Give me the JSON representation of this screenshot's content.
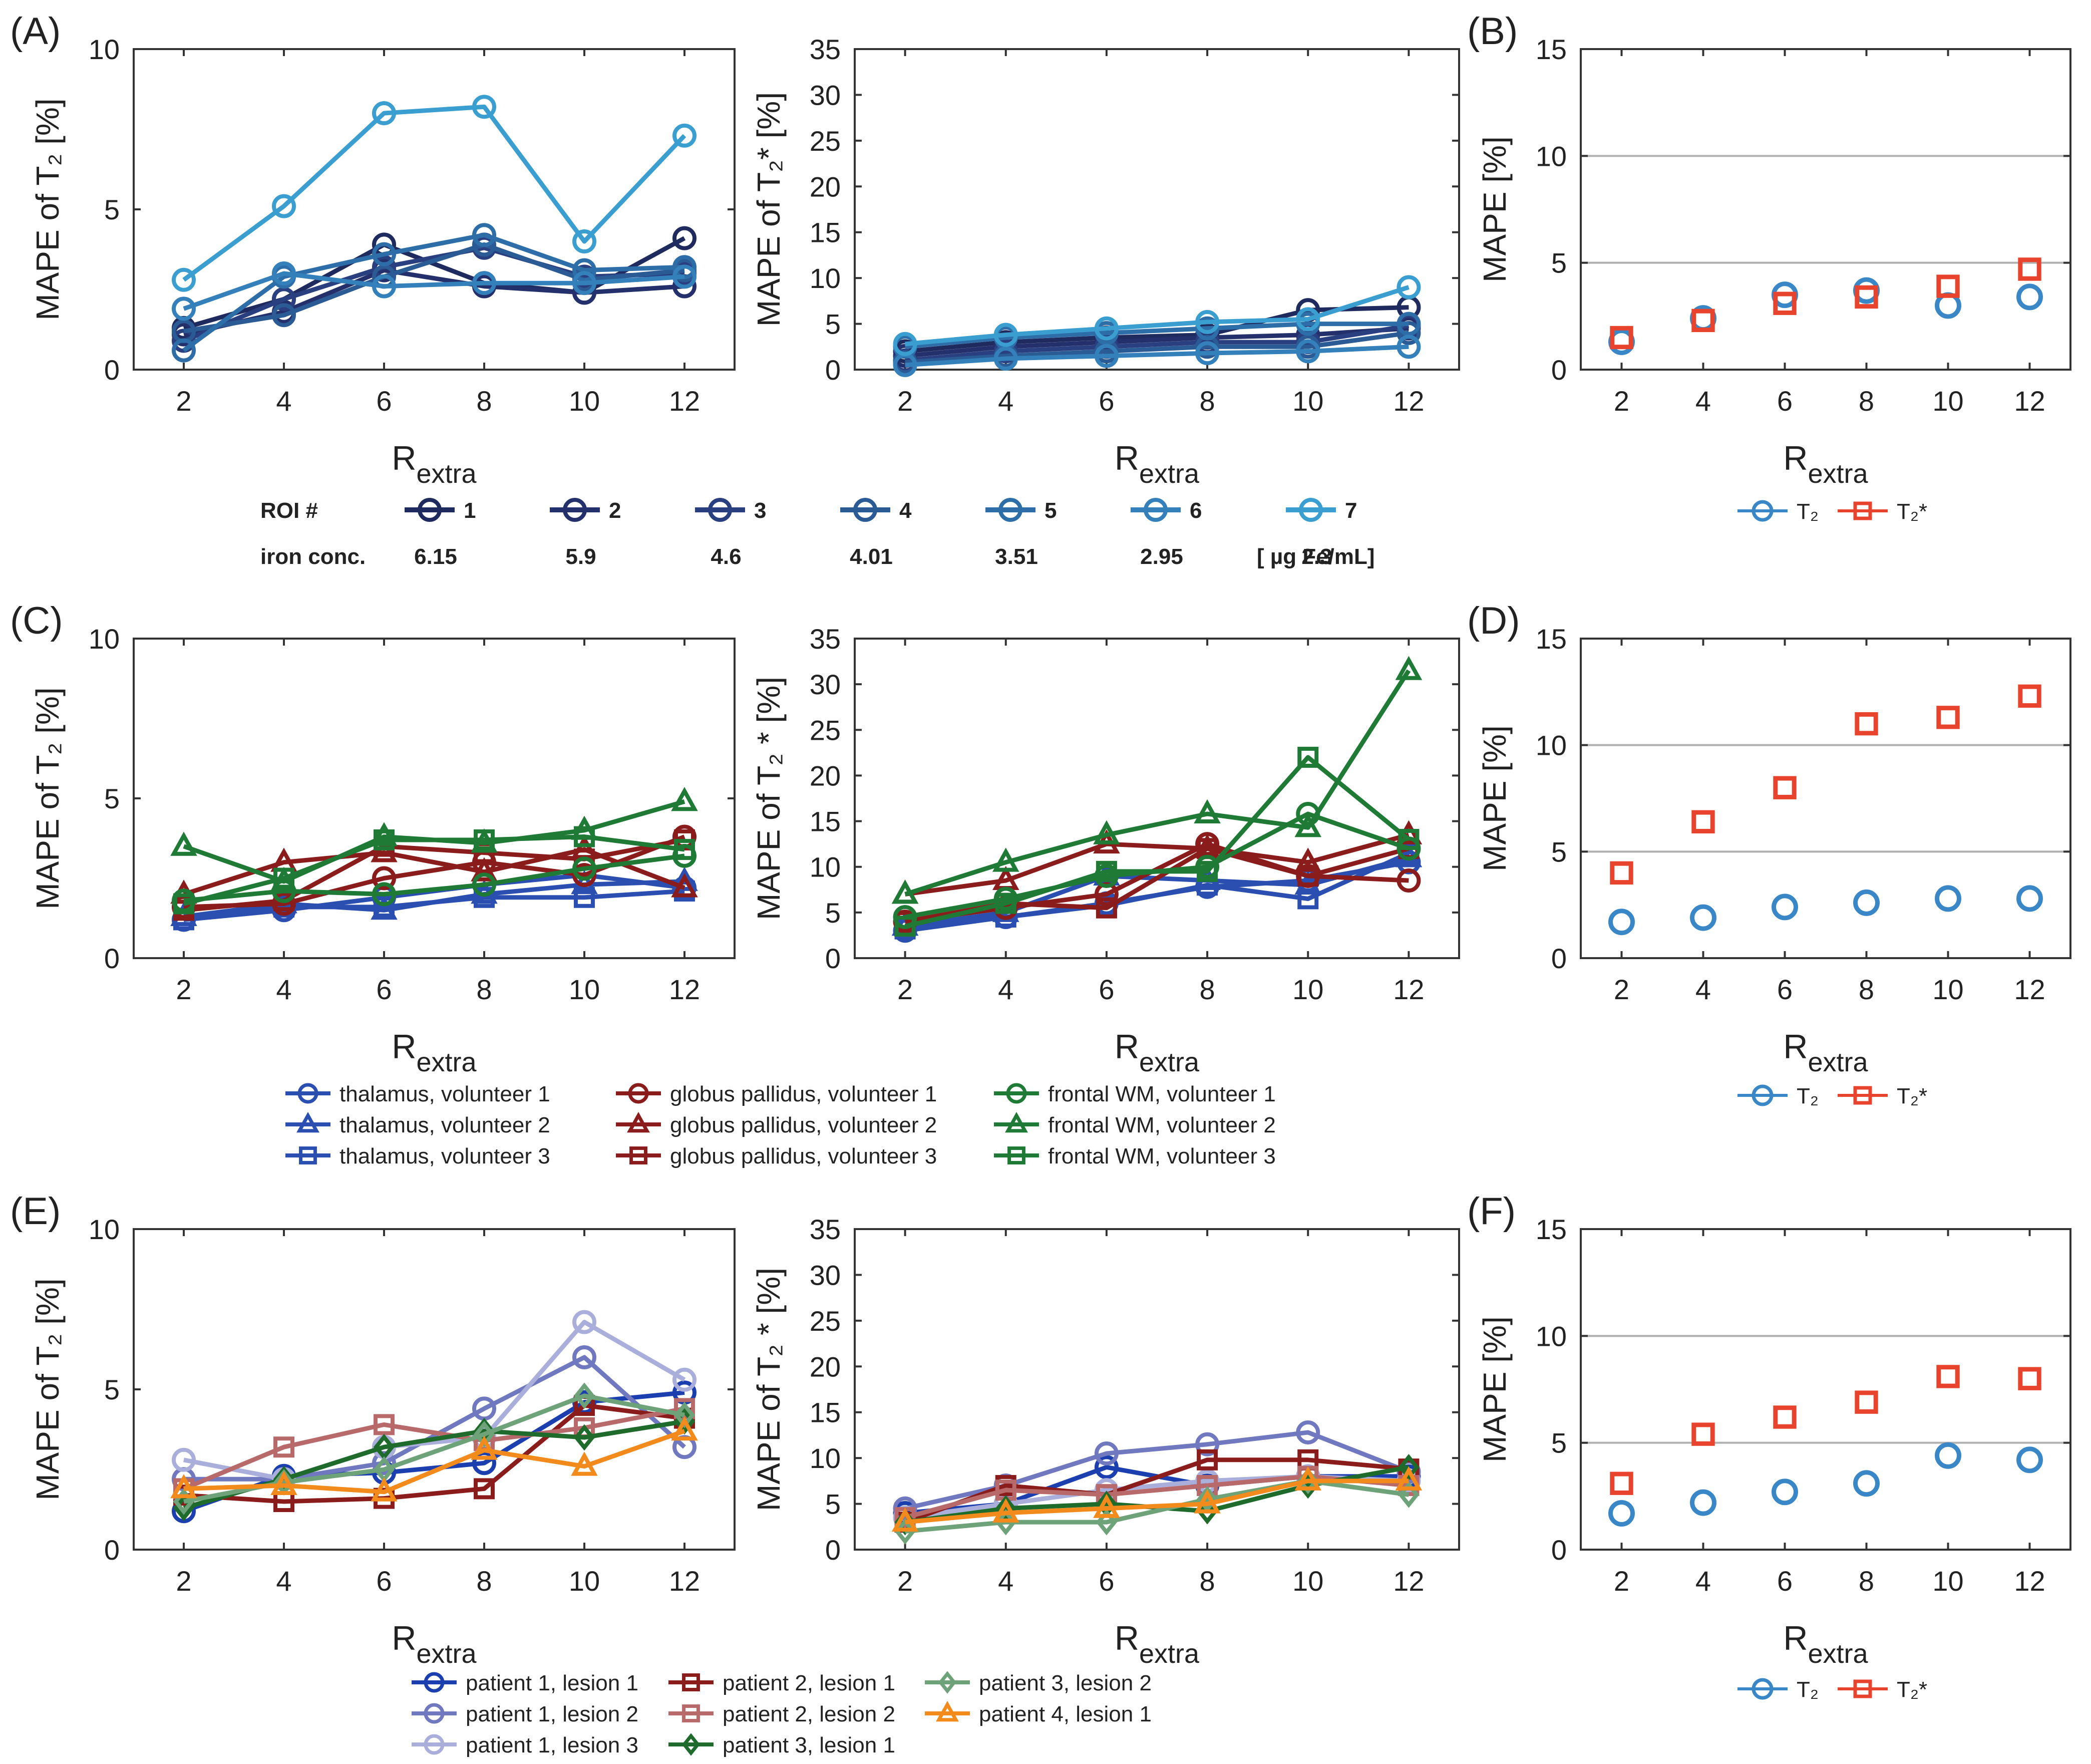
{
  "axis_common": {
    "xlabel_main": "R",
    "xlabel_sub": "extra",
    "x_ticks": [
      2,
      4,
      6,
      8,
      10,
      12
    ]
  },
  "chart_data": [
    {
      "id": "A1",
      "panel_label": "(A)",
      "type": "line",
      "ylabel": "MAPE of T₂ [%]",
      "ylim": [
        0,
        10
      ],
      "yticks": [
        0,
        5,
        10
      ],
      "x": [
        2,
        4,
        6,
        8,
        10,
        12
      ],
      "series": [
        {
          "name": "1",
          "color": "#1f2a5e",
          "marker": "circle",
          "values": [
            1.3,
            2.2,
            3.9,
            2.7,
            2.4,
            4.1
          ]
        },
        {
          "name": "2",
          "color": "#24306b",
          "marker": "circle",
          "values": [
            1.1,
            1.8,
            3.1,
            2.6,
            2.4,
            2.6
          ]
        },
        {
          "name": "3",
          "color": "#2a3f80",
          "marker": "circle",
          "values": [
            0.9,
            2.2,
            3.2,
            3.8,
            2.9,
            3.0
          ]
        },
        {
          "name": "4",
          "color": "#2b5b94",
          "marker": "circle",
          "values": [
            1.2,
            1.7,
            2.9,
            3.9,
            2.8,
            3.1
          ]
        },
        {
          "name": "5",
          "color": "#2e6ea8",
          "marker": "circle",
          "values": [
            0.6,
            2.9,
            3.6,
            4.2,
            3.1,
            3.2
          ]
        },
        {
          "name": "6",
          "color": "#3380bb",
          "marker": "circle",
          "values": [
            1.9,
            3.0,
            2.6,
            2.7,
            2.7,
            2.9
          ]
        },
        {
          "name": "7",
          "color": "#3a9fd0",
          "marker": "circle",
          "values": [
            2.8,
            5.1,
            8.0,
            8.2,
            4.0,
            7.3
          ]
        }
      ]
    },
    {
      "id": "A2",
      "type": "line",
      "ylabel": "MAPE of T₂* [%]",
      "ylim": [
        0,
        35
      ],
      "yticks": [
        0,
        5,
        10,
        15,
        20,
        25,
        30,
        35
      ],
      "x": [
        2,
        4,
        6,
        8,
        10,
        12
      ],
      "series": [
        {
          "name": "1",
          "color": "#1f2a5e",
          "marker": "circle",
          "values": [
            2.0,
            3.0,
            3.5,
            3.8,
            6.5,
            6.8
          ]
        },
        {
          "name": "2",
          "color": "#24306b",
          "marker": "circle",
          "values": [
            1.5,
            2.5,
            3.0,
            3.5,
            3.8,
            4.5
          ]
        },
        {
          "name": "3",
          "color": "#2a3f80",
          "marker": "circle",
          "values": [
            1.0,
            2.0,
            2.5,
            3.0,
            3.0,
            4.8
          ]
        },
        {
          "name": "4",
          "color": "#2b5b94",
          "marker": "circle",
          "values": [
            0.8,
            1.5,
            2.0,
            2.5,
            2.5,
            4.0
          ]
        },
        {
          "name": "5",
          "color": "#2e6ea8",
          "marker": "circle",
          "values": [
            2.5,
            3.5,
            4.0,
            4.5,
            5.0,
            5.0
          ]
        },
        {
          "name": "6",
          "color": "#3380bb",
          "marker": "circle",
          "values": [
            0.5,
            1.2,
            1.5,
            1.8,
            2.0,
            2.5
          ]
        },
        {
          "name": "7",
          "color": "#3a9fd0",
          "marker": "circle",
          "values": [
            2.8,
            3.8,
            4.5,
            5.2,
            5.5,
            9.0
          ]
        }
      ]
    },
    {
      "id": "B",
      "panel_label": "(B)",
      "type": "scatter",
      "ylabel": "MAPE [%]",
      "ylim": [
        0,
        15
      ],
      "yticks": [
        0,
        5,
        10,
        15
      ],
      "hlines": [
        5,
        10
      ],
      "x": [
        2,
        4,
        6,
        8,
        10,
        12
      ],
      "series": [
        {
          "name": "T₂",
          "color": "#3a87c8",
          "marker": "circle",
          "values": [
            1.3,
            2.4,
            3.5,
            3.7,
            3.0,
            3.4
          ]
        },
        {
          "name": "T₂*",
          "color": "#e8432c",
          "marker": "square",
          "values": [
            1.5,
            2.3,
            3.1,
            3.4,
            3.9,
            4.7
          ]
        }
      ]
    },
    {
      "id": "C1",
      "panel_label": "(C)",
      "type": "line",
      "ylabel": "MAPE of T₂  [%]",
      "ylim": [
        0,
        10
      ],
      "yticks": [
        0,
        5,
        10
      ],
      "x": [
        2,
        4,
        6,
        8,
        10,
        12
      ],
      "series": [
        {
          "name": "thalamus, volunteer 1",
          "color": "#2a4fb0",
          "marker": "circle",
          "values": [
            1.2,
            1.5,
            1.9,
            2.3,
            2.6,
            2.2
          ]
        },
        {
          "name": "thalamus, volunteer 2",
          "color": "#2a4fb0",
          "marker": "triangle",
          "values": [
            1.3,
            1.7,
            1.5,
            2.0,
            2.3,
            2.4
          ]
        },
        {
          "name": "thalamus, volunteer 3",
          "color": "#2a4fb0",
          "marker": "square",
          "values": [
            1.2,
            1.6,
            1.6,
            1.9,
            1.9,
            2.1
          ]
        },
        {
          "name": "globus pallidus, volunteer 1",
          "color": "#8b1c1c",
          "marker": "circle",
          "values": [
            1.6,
            1.7,
            2.5,
            3.0,
            2.6,
            3.8
          ]
        },
        {
          "name": "globus pallidus, volunteer 2",
          "color": "#8b1c1c",
          "marker": "triangle",
          "values": [
            2.0,
            3.0,
            3.3,
            2.7,
            3.4,
            2.2
          ]
        },
        {
          "name": "globus pallidus, volunteer 3",
          "color": "#8b1c1c",
          "marker": "square",
          "values": [
            1.5,
            1.8,
            3.5,
            3.3,
            3.1,
            3.7
          ]
        },
        {
          "name": "frontal WM, volunteer 1",
          "color": "#1e7a35",
          "marker": "circle",
          "values": [
            1.8,
            2.1,
            2.0,
            2.3,
            2.8,
            3.2
          ]
        },
        {
          "name": "frontal WM, volunteer 2",
          "color": "#1e7a35",
          "marker": "triangle",
          "values": [
            3.5,
            2.4,
            3.8,
            3.6,
            4.0,
            4.9
          ]
        },
        {
          "name": "frontal WM, volunteer 3",
          "color": "#1e7a35",
          "marker": "square",
          "values": [
            1.7,
            2.5,
            3.7,
            3.7,
            3.8,
            3.4
          ]
        }
      ]
    },
    {
      "id": "C2",
      "type": "line",
      "ylabel": "MAPE of T₂ * [%]",
      "ylim": [
        0,
        35
      ],
      "yticks": [
        0,
        5,
        10,
        15,
        20,
        25,
        30,
        35
      ],
      "x": [
        2,
        4,
        6,
        8,
        10,
        12
      ],
      "series": [
        {
          "name": "thalamus, volunteer 1",
          "color": "#2a4fb0",
          "marker": "circle",
          "values": [
            3.0,
            4.5,
            6.0,
            7.8,
            8.5,
            10.5
          ]
        },
        {
          "name": "thalamus, volunteer 2",
          "color": "#2a4fb0",
          "marker": "triangle",
          "values": [
            3.5,
            5.0,
            9.0,
            8.5,
            8.0,
            11.0
          ]
        },
        {
          "name": "thalamus, volunteer 3",
          "color": "#2a4fb0",
          "marker": "square",
          "values": [
            3.2,
            4.5,
            5.8,
            8.0,
            6.5,
            11.5
          ]
        },
        {
          "name": "globus pallidus, volunteer 1",
          "color": "#8b1c1c",
          "marker": "circle",
          "values": [
            4.0,
            5.5,
            7.0,
            12.5,
            9.0,
            8.5
          ]
        },
        {
          "name": "globus pallidus, volunteer 2",
          "color": "#8b1c1c",
          "marker": "triangle",
          "values": [
            7.0,
            8.5,
            12.5,
            12.0,
            10.5,
            13.5
          ]
        },
        {
          "name": "globus pallidus, volunteer 3",
          "color": "#8b1c1c",
          "marker": "square",
          "values": [
            4.0,
            6.0,
            5.5,
            12.0,
            9.0,
            12.0
          ]
        },
        {
          "name": "frontal WM, volunteer 1",
          "color": "#1e7a35",
          "marker": "circle",
          "values": [
            4.5,
            6.5,
            9.0,
            10.0,
            15.8,
            12.0
          ]
        },
        {
          "name": "frontal WM, volunteer 2",
          "color": "#1e7a35",
          "marker": "triangle",
          "values": [
            7.0,
            10.5,
            13.5,
            15.8,
            14.3,
            31.5
          ]
        },
        {
          "name": "frontal WM, volunteer 3",
          "color": "#1e7a35",
          "marker": "square",
          "values": [
            3.5,
            6.0,
            9.5,
            9.5,
            22.0,
            13.0
          ]
        }
      ]
    },
    {
      "id": "D",
      "panel_label": "(D)",
      "type": "scatter",
      "ylabel": "MAPE [%]",
      "ylim": [
        0,
        15
      ],
      "yticks": [
        0,
        5,
        10,
        15
      ],
      "hlines": [
        5,
        10
      ],
      "x": [
        2,
        4,
        6,
        8,
        10,
        12
      ],
      "series": [
        {
          "name": "T₂",
          "color": "#3a87c8",
          "marker": "circle",
          "values": [
            1.7,
            1.9,
            2.4,
            2.6,
            2.8,
            2.8
          ]
        },
        {
          "name": "T₂*",
          "color": "#e8432c",
          "marker": "square",
          "values": [
            4.0,
            6.4,
            8.0,
            11.0,
            11.3,
            12.3
          ]
        }
      ]
    },
    {
      "id": "E1",
      "panel_label": "(E)",
      "type": "line",
      "ylabel": "MAPE of T₂ [%]",
      "ylim": [
        0,
        10
      ],
      "yticks": [
        0,
        5,
        10
      ],
      "x": [
        2,
        4,
        6,
        8,
        10,
        12
      ],
      "series": [
        {
          "name": "patient 1, lesion 1",
          "color": "#1c3fb0",
          "marker": "circle",
          "values": [
            1.2,
            2.3,
            2.4,
            2.7,
            4.6,
            4.9
          ]
        },
        {
          "name": "patient 1, lesion 2",
          "color": "#7078c0",
          "marker": "circle",
          "values": [
            2.2,
            2.2,
            2.7,
            4.4,
            6.0,
            3.2
          ]
        },
        {
          "name": "patient 1, lesion 3",
          "color": "#a9aedb",
          "marker": "circle",
          "values": [
            2.8,
            2.2,
            3.2,
            3.5,
            7.1,
            5.3
          ]
        },
        {
          "name": "patient 2, lesion 1",
          "color": "#8b1c1c",
          "marker": "square",
          "values": [
            1.7,
            1.5,
            1.6,
            1.9,
            4.5,
            4.1
          ]
        },
        {
          "name": "patient 2, lesion 2",
          "color": "#b86a6a",
          "marker": "square",
          "values": [
            1.9,
            3.2,
            3.9,
            3.4,
            3.8,
            4.4
          ]
        },
        {
          "name": "patient 3, lesion 1",
          "color": "#1e6b2c",
          "marker": "diamond",
          "values": [
            1.3,
            2.2,
            3.2,
            3.7,
            3.5,
            4.0
          ]
        },
        {
          "name": "patient 3, lesion 2",
          "color": "#6ea37a",
          "marker": "diamond",
          "values": [
            1.5,
            2.1,
            2.5,
            3.6,
            4.8,
            4.2
          ]
        },
        {
          "name": "patient 4, lesion 1",
          "color": "#f28a1c",
          "marker": "triangle",
          "values": [
            1.9,
            2.0,
            1.8,
            3.1,
            2.6,
            3.7
          ]
        }
      ]
    },
    {
      "id": "E2",
      "type": "line",
      "ylabel": "MAPE of T₂ * [%]",
      "ylim": [
        0,
        35
      ],
      "yticks": [
        0,
        5,
        10,
        15,
        20,
        25,
        30,
        35
      ],
      "x": [
        2,
        4,
        6,
        8,
        10,
        12
      ],
      "series": [
        {
          "name": "patient 1, lesion 1",
          "color": "#1c3fb0",
          "marker": "circle",
          "values": [
            4.0,
            5.0,
            9.0,
            7.0,
            8.0,
            8.0
          ]
        },
        {
          "name": "patient 1, lesion 2",
          "color": "#7078c0",
          "marker": "circle",
          "values": [
            4.5,
            7.0,
            10.5,
            11.5,
            12.8,
            8.5
          ]
        },
        {
          "name": "patient 1, lesion 3",
          "color": "#a9aedb",
          "marker": "circle",
          "values": [
            3.5,
            5.0,
            6.5,
            7.5,
            8.0,
            7.5
          ]
        },
        {
          "name": "patient 2, lesion 1",
          "color": "#8b1c1c",
          "marker": "square",
          "values": [
            3.0,
            7.0,
            6.0,
            9.8,
            9.8,
            8.8
          ]
        },
        {
          "name": "patient 2, lesion 2",
          "color": "#b86a6a",
          "marker": "square",
          "values": [
            3.5,
            6.5,
            6.0,
            7.0,
            8.0,
            7.0
          ]
        },
        {
          "name": "patient 3, lesion 1",
          "color": "#1e6b2c",
          "marker": "diamond",
          "values": [
            3.0,
            4.5,
            5.0,
            4.2,
            7.0,
            9.0
          ]
        },
        {
          "name": "patient 3, lesion 2",
          "color": "#6ea37a",
          "marker": "diamond",
          "values": [
            2.0,
            3.0,
            3.0,
            5.5,
            7.5,
            6.0
          ]
        },
        {
          "name": "patient 4, lesion 1",
          "color": "#f28a1c",
          "marker": "triangle",
          "values": [
            3.0,
            4.0,
            4.5,
            5.0,
            7.5,
            7.5
          ]
        }
      ]
    },
    {
      "id": "F",
      "panel_label": "(F)",
      "type": "scatter",
      "ylabel": "MAPE [%]",
      "ylim": [
        0,
        15
      ],
      "yticks": [
        0,
        5,
        10,
        15
      ],
      "hlines": [
        5,
        10
      ],
      "x": [
        2,
        4,
        6,
        8,
        10,
        12
      ],
      "series": [
        {
          "name": "T₂",
          "color": "#3a87c8",
          "marker": "circle",
          "values": [
            1.7,
            2.2,
            2.7,
            3.1,
            4.4,
            4.2
          ]
        },
        {
          "name": "T₂*",
          "color": "#e8432c",
          "marker": "square",
          "values": [
            3.1,
            5.4,
            6.2,
            6.9,
            8.1,
            8.0
          ]
        }
      ]
    }
  ],
  "legends": {
    "roi": {
      "header": "ROI #",
      "iron_header": "iron conc.",
      "iron_unit": "[ µg Fe/mL]",
      "rois": [
        {
          "label": "1",
          "iron": "6.15",
          "color": "#1f2a5e"
        },
        {
          "label": "2",
          "iron": "5.9",
          "color": "#24306b"
        },
        {
          "label": "3",
          "iron": "4.6",
          "color": "#2a3f80"
        },
        {
          "label": "4",
          "iron": "4.01",
          "color": "#2b5b94"
        },
        {
          "label": "5",
          "iron": "3.51",
          "color": "#2e6ea8"
        },
        {
          "label": "6",
          "iron": "2.95",
          "color": "#3380bb"
        },
        {
          "label": "7",
          "iron": "2.3",
          "color": "#3a9fd0"
        }
      ]
    },
    "scatter": {
      "t2_label": "T₂",
      "t2s_label": "T₂*"
    }
  }
}
